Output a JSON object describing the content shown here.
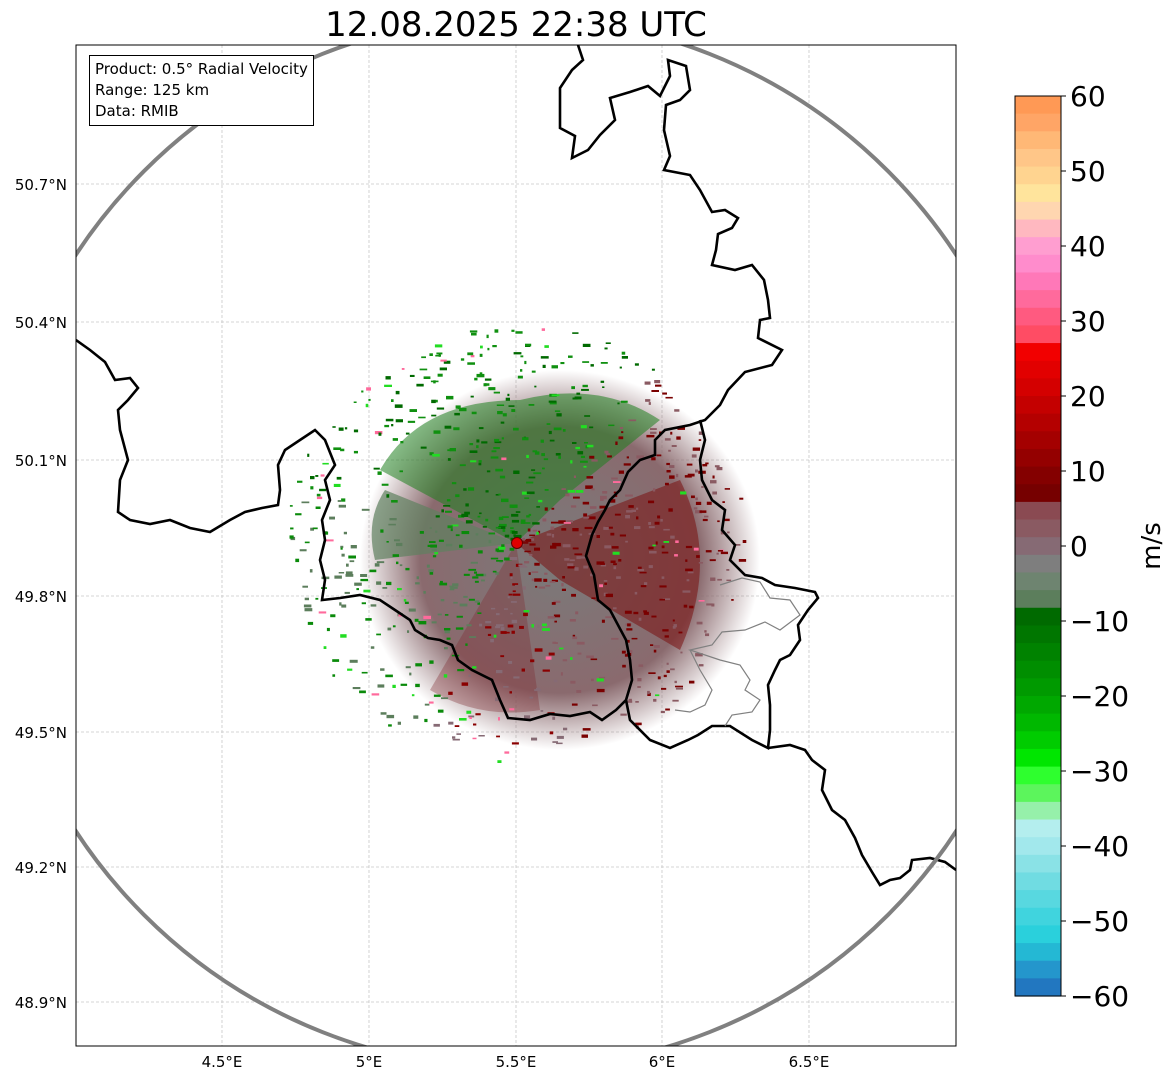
{
  "title": "12.08.2025 22:38 UTC",
  "info": {
    "product": "Product: 0.5° Radial Velocity",
    "range": "Range: 125 km",
    "data": "Data: RMIB"
  },
  "axes": {
    "lat_labels": [
      "50.7°N",
      "50.4°N",
      "50.1°N",
      "49.8°N",
      "49.5°N",
      "49.2°N",
      "48.9°N"
    ],
    "lon_labels": [
      "4.5°E",
      "5°E",
      "5.5°E",
      "6°E",
      "6.5°E"
    ]
  },
  "colorbar": {
    "label": "m/s",
    "ticks": [
      "60",
      "50",
      "40",
      "30",
      "20",
      "10",
      "0",
      "−10",
      "−20",
      "−30",
      "−40",
      "−50",
      "−60"
    ],
    "min": -60,
    "max": 60
  },
  "colors": {
    "range_ring": "#808080",
    "radar_site": "#e00000",
    "border": "#000000"
  }
}
